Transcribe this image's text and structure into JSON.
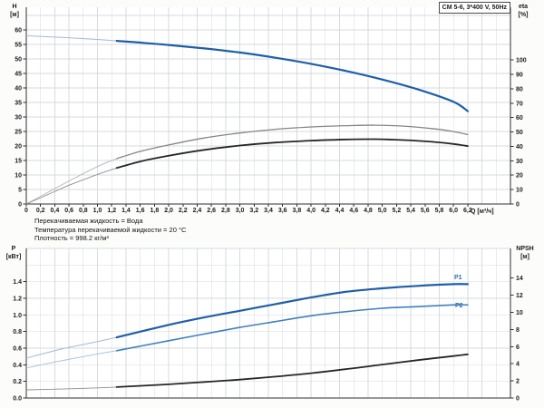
{
  "title_box": "CM 5-6, 3*400 V, 50Hz",
  "info_lines": [
    "Перекачиваемая жидкость = Вода",
    "Температура перекачиваемой жидкости = 20 °C",
    "Плотность = 998.2 кг/м³"
  ],
  "axis_labels": {
    "h_top": "H",
    "h_unit": "[м]",
    "eta_top": "eta",
    "eta_unit": "[%]",
    "q_label": "Q [м³/ч]",
    "p_top": "P",
    "p_unit": "[кВт]",
    "npsh_top": "NPSH",
    "npsh_unit": "[м]"
  },
  "curve_labels": {
    "p1": "P1",
    "p2": "P2"
  },
  "colors": {
    "blue_thick": "#1e5fa8",
    "blue_thin": "#a3b8d8",
    "blue2_thick": "#4080be",
    "blue2_thin": "#aec4de",
    "grey_thick": "#858585",
    "grey_thin": "#b5b5b5",
    "black_thick": "#262626",
    "black_thin": "#8f8f8f",
    "grid": "#d6dade",
    "axis": "#2f2f2f",
    "text": "#1a1a1a",
    "curve_label_blue": "#2e6db4"
  },
  "chart_data": [
    {
      "type": "line",
      "xlabel": "Q [м³/ч]",
      "x_range": [
        0,
        6.8
      ],
      "x_tick_step": 0.2,
      "x_tick_labels": [
        "0",
        "0,2",
        "0,4",
        "0,6",
        "0,8",
        "1,0",
        "1,2",
        "1,4",
        "1,6",
        "1,8",
        "2,0",
        "2,2",
        "2,4",
        "2,6",
        "2,8",
        "3,0",
        "3,2",
        "3,4",
        "3,6",
        "3,8",
        "4,0",
        "4,2",
        "4,4",
        "4,6",
        "4,8",
        "5,0",
        "5,2",
        "5,4",
        "5,6",
        "5,8",
        "6,0",
        "6,2"
      ],
      "grid": true,
      "left_axis": {
        "label": "H [м]",
        "range": [
          0,
          67.8
        ],
        "tick_step": 5,
        "tick_labels": [
          "0",
          "5",
          "10",
          "15",
          "20",
          "25",
          "30",
          "35",
          "40",
          "45",
          "50",
          "55",
          "60"
        ]
      },
      "right_axis": {
        "label": "eta [%]",
        "range": [
          0,
          136.6
        ],
        "tick_step": 10,
        "tick_labels": [
          "0",
          "10",
          "20",
          "30",
          "40",
          "50",
          "60",
          "70",
          "80",
          "90",
          "100"
        ]
      },
      "series": [
        {
          "name": "head-curve",
          "axis": "left",
          "thick_from": 1.27,
          "color_thick": "#1e5fa8",
          "color_thin": "#a3b8d8",
          "w_thick": 2.2,
          "w_thin": 1,
          "points": [
            [
              0,
              58
            ],
            [
              0.5,
              57.4
            ],
            [
              1.0,
              56.7
            ],
            [
              1.27,
              56.2
            ],
            [
              1.5,
              55.8
            ],
            [
              2.0,
              54.8
            ],
            [
              2.5,
              53.6
            ],
            [
              3.0,
              52.2
            ],
            [
              3.5,
              50.4
            ],
            [
              4.0,
              48.3
            ],
            [
              4.5,
              45.8
            ],
            [
              5.0,
              42.9
            ],
            [
              5.5,
              39.5
            ],
            [
              6.0,
              35.2
            ],
            [
              6.2,
              32
            ]
          ]
        },
        {
          "name": "eta-pump-curve",
          "axis": "right",
          "thick_from": 1.27,
          "color_thick": "#858585",
          "color_thin": "#b5b5b5",
          "w_thick": 1.3,
          "w_thin": 0.9,
          "points": [
            [
              0,
              0
            ],
            [
              0.3,
              8
            ],
            [
              0.6,
              16
            ],
            [
              1.0,
              26
            ],
            [
              1.27,
              31.5
            ],
            [
              1.6,
              36.5
            ],
            [
              2.0,
              41
            ],
            [
              2.5,
              45.8
            ],
            [
              3.0,
              49.3
            ],
            [
              3.5,
              51.9
            ],
            [
              4.0,
              53.5
            ],
            [
              4.5,
              54.4
            ],
            [
              4.9,
              54.7
            ],
            [
              5.3,
              54.1
            ],
            [
              5.7,
              52.4
            ],
            [
              6.0,
              50.3
            ],
            [
              6.2,
              48.2
            ]
          ]
        },
        {
          "name": "eta-pump-motor-curve",
          "axis": "right",
          "thick_from": 1.27,
          "color_thick": "#262626",
          "color_thin": "#8f8f8f",
          "w_thick": 1.8,
          "w_thin": 0.9,
          "points": [
            [
              0,
              0
            ],
            [
              0.3,
              6.5
            ],
            [
              0.6,
              13
            ],
            [
              1.0,
              20.5
            ],
            [
              1.27,
              25
            ],
            [
              1.6,
              29.5
            ],
            [
              2.0,
              33.5
            ],
            [
              2.5,
              37.6
            ],
            [
              3.0,
              40.6
            ],
            [
              3.5,
              42.7
            ],
            [
              4.0,
              44
            ],
            [
              4.5,
              44.8
            ],
            [
              4.9,
              45
            ],
            [
              5.3,
              44.4
            ],
            [
              5.7,
              43.2
            ],
            [
              6.0,
              41.7
            ],
            [
              6.2,
              40.2
            ]
          ]
        }
      ]
    },
    {
      "type": "line",
      "xlabel": "",
      "x_range": [
        0,
        6.8
      ],
      "x_tick_step": 0.2,
      "x_tick_labels": [],
      "grid": true,
      "left_axis": {
        "label": "P [кВт]",
        "range": [
          0,
          1.8
        ],
        "tick_step": 0.2,
        "tick_labels": [
          "0.0",
          "0.2",
          "0.4",
          "0.6",
          "0.8",
          "1.0",
          "1.2",
          "1.4"
        ]
      },
      "right_axis": {
        "label": "NPSH [м]",
        "range": [
          0,
          17.45
        ],
        "tick_step": 2,
        "tick_labels": [
          "0",
          "2",
          "4",
          "6",
          "8",
          "10",
          "12",
          "14"
        ]
      },
      "series": [
        {
          "name": "p1-curve",
          "axis": "left",
          "thick_from": 1.27,
          "color_thick": "#1e5fa8",
          "color_thin": "#a3b8d8",
          "w_thick": 2.2,
          "w_thin": 1,
          "points": [
            [
              0,
              0.48
            ],
            [
              0.5,
              0.59
            ],
            [
              1.0,
              0.68
            ],
            [
              1.27,
              0.73
            ],
            [
              2.0,
              0.88
            ],
            [
              2.5,
              0.97
            ],
            [
              3.0,
              1.05
            ],
            [
              3.5,
              1.13
            ],
            [
              4.0,
              1.21
            ],
            [
              4.5,
              1.28
            ],
            [
              5.0,
              1.32
            ],
            [
              5.5,
              1.35
            ],
            [
              6.0,
              1.37
            ],
            [
              6.2,
              1.37
            ]
          ]
        },
        {
          "name": "p2-curve",
          "axis": "left",
          "thick_from": 1.27,
          "color_thick": "#4080be",
          "color_thin": "#aec4de",
          "w_thick": 1.6,
          "w_thin": 1,
          "points": [
            [
              0,
              0.36
            ],
            [
              0.5,
              0.45
            ],
            [
              1.0,
              0.53
            ],
            [
              1.27,
              0.57
            ],
            [
              2.0,
              0.69
            ],
            [
              2.5,
              0.77
            ],
            [
              3.0,
              0.85
            ],
            [
              3.5,
              0.92
            ],
            [
              4.0,
              0.99
            ],
            [
              4.5,
              1.04
            ],
            [
              5.0,
              1.08
            ],
            [
              5.5,
              1.1
            ],
            [
              6.0,
              1.12
            ],
            [
              6.2,
              1.12
            ]
          ]
        },
        {
          "name": "npsh-curve",
          "axis": "right",
          "thick_from": 1.27,
          "color_thick": "#262626",
          "color_thin": "#8f8f8f",
          "w_thick": 1.8,
          "w_thin": 0.9,
          "points": [
            [
              0,
              0.95
            ],
            [
              0.5,
              1.05
            ],
            [
              1.0,
              1.18
            ],
            [
              1.27,
              1.28
            ],
            [
              2.0,
              1.6
            ],
            [
              2.5,
              1.87
            ],
            [
              3.0,
              2.15
            ],
            [
              3.5,
              2.5
            ],
            [
              4.0,
              2.9
            ],
            [
              4.5,
              3.38
            ],
            [
              5.0,
              3.9
            ],
            [
              5.5,
              4.42
            ],
            [
              6.0,
              4.9
            ],
            [
              6.2,
              5.1
            ]
          ]
        }
      ]
    }
  ]
}
